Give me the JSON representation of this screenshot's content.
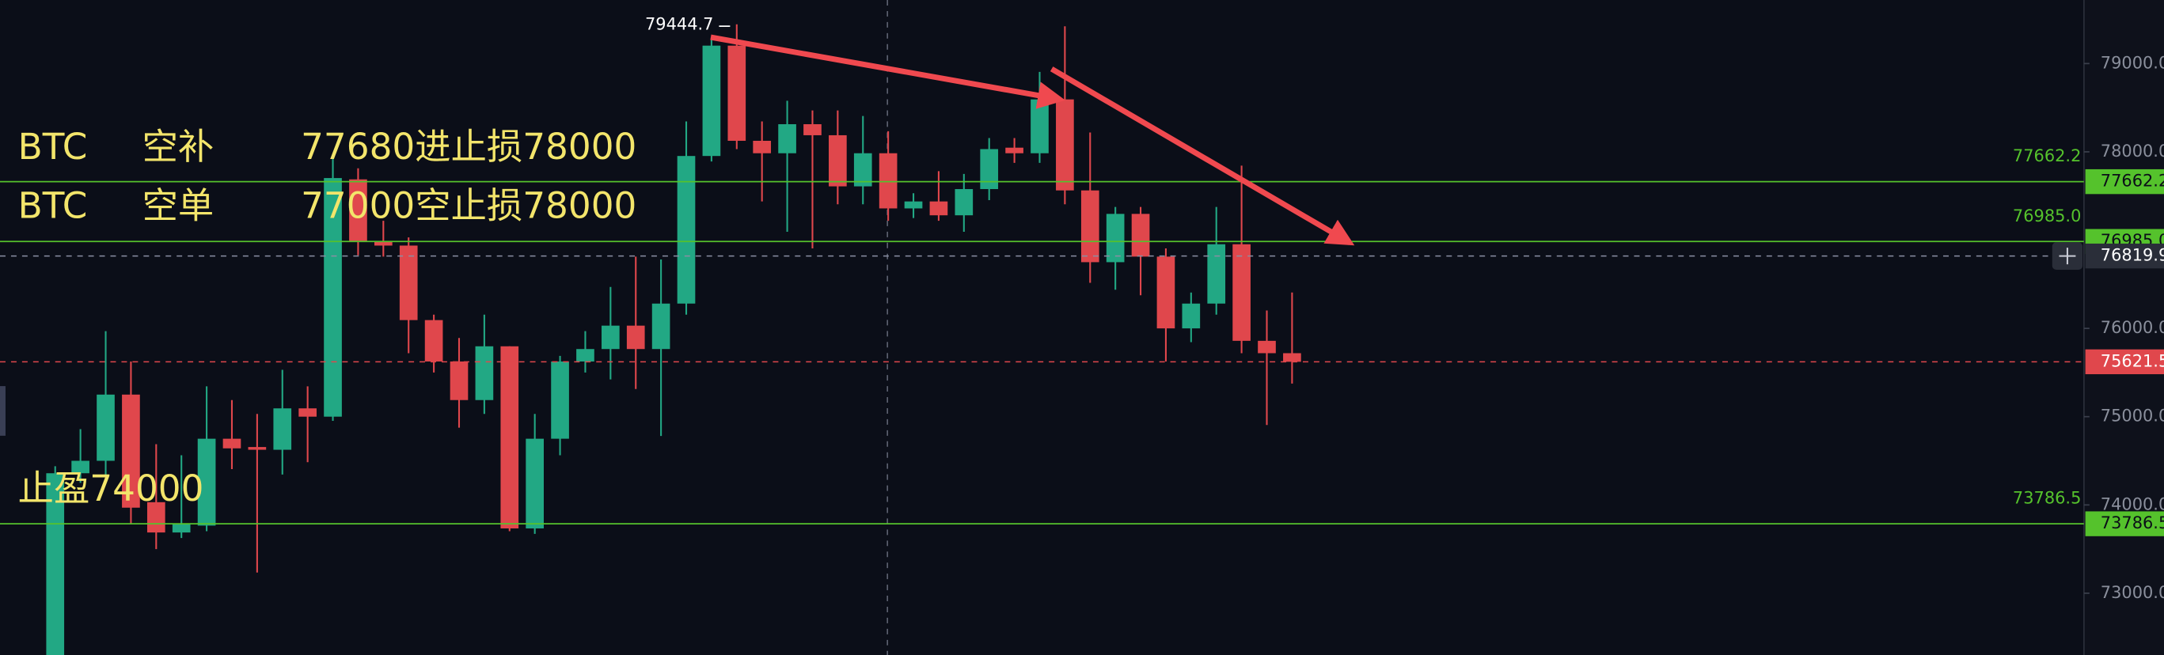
{
  "chart_data": {
    "type": "candlestick",
    "up_color": "#22a884",
    "down_color": "#e0474c",
    "candles": {
      "open": [
        72250,
        74359,
        74500,
        75250,
        74031,
        73688,
        73766,
        74750,
        74656,
        74625,
        75094,
        75000,
        77688,
        76984,
        76938,
        76094,
        75625,
        75188,
        75797,
        73734,
        74750,
        75625,
        75766,
        76031,
        75766,
        76281,
        77953,
        79203,
        78125,
        77984,
        78313,
        78188,
        77609,
        77984,
        77359,
        77438,
        77281,
        77578,
        78047,
        77984,
        78594,
        77563,
        76750,
        77297,
        76813,
        76000,
        76281,
        76953,
        75859,
        75719
      ],
      "high": [
        74438,
        74859,
        75969,
        75625,
        74688,
        74563,
        75344,
        75188,
        75031,
        75531,
        75344,
        77922,
        77813,
        77219,
        77031,
        76156,
        75891,
        76156,
        75797,
        75031,
        75688,
        75969,
        76469,
        76813,
        76781,
        78344,
        79281,
        79444.7,
        78344,
        78578,
        78469,
        78469,
        78406,
        78234,
        77531,
        77781,
        77750,
        78156,
        78156,
        78906,
        79422,
        78219,
        77375,
        77375,
        76906,
        76406,
        77375,
        77844,
        76203,
        76406
      ],
      "low": [
        72100,
        74250,
        74328,
        73781,
        73500,
        73625,
        73703,
        74406,
        73234,
        74344,
        74484,
        74953,
        76828,
        76813,
        75719,
        75500,
        74875,
        75031,
        73703,
        73672,
        74563,
        75500,
        75422,
        75313,
        74781,
        76156,
        77891,
        78031,
        77438,
        77094,
        76906,
        77406,
        77406,
        77219,
        77250,
        77219,
        77094,
        77453,
        77875,
        77875,
        77406,
        76516,
        76438,
        76375,
        75625,
        75844,
        76156,
        75719,
        74906,
        75375
      ],
      "close": [
        74359,
        74500,
        75250,
        73969,
        73688,
        73781,
        74750,
        74641,
        74625,
        75094,
        75000,
        77703,
        76984,
        76938,
        76094,
        75625,
        75188,
        75797,
        73734,
        74750,
        75625,
        75766,
        76031,
        75766,
        76281,
        77953,
        79203,
        78125,
        77984,
        78313,
        78188,
        77609,
        77984,
        77359,
        77438,
        77281,
        77578,
        78031,
        77984,
        78594,
        77563,
        76750,
        77297,
        76813,
        76000,
        76281,
        76953,
        75859,
        75719,
        75621.5
      ]
    },
    "ylim": [
      72300,
      79720
    ],
    "yticks": [
      {
        "value": 79000,
        "label": "79000.0"
      },
      {
        "value": 78000,
        "label": "78000.0"
      },
      {
        "value": 76000,
        "label": "76000.0"
      },
      {
        "value": 75000,
        "label": "75000.0"
      },
      {
        "value": 74000,
        "label": "74000.0"
      },
      {
        "value": 73000,
        "label": "73000.0"
      }
    ],
    "level_color": "#55c22c",
    "levels": [
      {
        "price": 77662.2
      },
      {
        "price": {
          "value": 76985,
          "label": "76985.0"
        }
      },
      {
        "price": 73786.5
      }
    ],
    "last_price": 75621.5,
    "crosshair_price": 76819.9,
    "annotations": [
      [
        "BTC",
        "空补",
        "77680进止损78000"
      ],
      [
        "BTC",
        "空单",
        "77000空止损78000"
      ],
      [
        "止盈74000"
      ]
    ]
  }
}
